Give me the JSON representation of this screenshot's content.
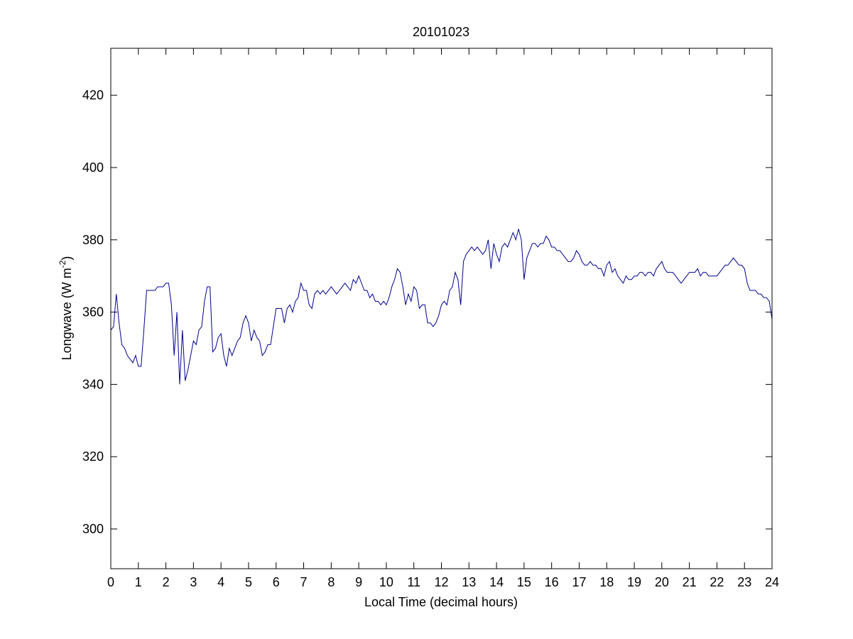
{
  "chart_data": {
    "type": "line",
    "title": "20101023",
    "xlabel": "Local Time (decimal hours)",
    "ylabel": [
      "Longwave (W m",
      "-2",
      ")"
    ],
    "xlim": [
      0,
      24
    ],
    "ylim": [
      289,
      433
    ],
    "xticks": [
      0,
      1,
      2,
      3,
      4,
      5,
      6,
      7,
      8,
      9,
      10,
      11,
      12,
      13,
      14,
      15,
      16,
      17,
      18,
      19,
      20,
      21,
      22,
      23,
      24
    ],
    "yticks": [
      300,
      320,
      340,
      360,
      380,
      400,
      420
    ],
    "grid": false,
    "x": [
      0,
      0.1,
      0.2,
      0.3,
      0.4,
      0.5,
      0.6,
      0.7,
      0.8,
      0.9,
      1,
      1.1,
      1.2,
      1.3,
      1.4,
      1.5,
      1.6,
      1.7,
      1.8,
      1.9,
      2,
      2.1,
      2.2,
      2.3,
      2.4,
      2.5,
      2.6,
      2.7,
      2.8,
      2.9,
      3,
      3.1,
      3.2,
      3.3,
      3.4,
      3.5,
      3.6,
      3.7,
      3.8,
      3.9,
      4,
      4.1,
      4.2,
      4.3,
      4.4,
      4.5,
      4.6,
      4.7,
      4.8,
      4.9,
      5,
      5.1,
      5.2,
      5.3,
      5.4,
      5.5,
      5.6,
      5.7,
      5.8,
      5.9,
      6,
      6.1,
      6.2,
      6.3,
      6.4,
      6.5,
      6.6,
      6.7,
      6.8,
      6.9,
      7,
      7.1,
      7.2,
      7.3,
      7.4,
      7.5,
      7.6,
      7.7,
      7.8,
      7.9,
      8,
      8.1,
      8.2,
      8.3,
      8.4,
      8.5,
      8.6,
      8.7,
      8.8,
      8.9,
      9,
      9.1,
      9.2,
      9.3,
      9.4,
      9.5,
      9.6,
      9.7,
      9.8,
      9.9,
      10,
      10.1,
      10.2,
      10.3,
      10.4,
      10.5,
      10.6,
      10.7,
      10.8,
      10.9,
      11,
      11.1,
      11.2,
      11.3,
      11.4,
      11.5,
      11.6,
      11.7,
      11.8,
      11.9,
      12,
      12.1,
      12.2,
      12.3,
      12.4,
      12.5,
      12.6,
      12.7,
      12.8,
      12.9,
      13,
      13.1,
      13.2,
      13.3,
      13.4,
      13.5,
      13.6,
      13.7,
      13.8,
      13.9,
      14,
      14.1,
      14.2,
      14.3,
      14.4,
      14.5,
      14.6,
      14.7,
      14.8,
      14.9,
      15,
      15.1,
      15.2,
      15.3,
      15.4,
      15.5,
      15.6,
      15.7,
      15.8,
      15.9,
      16,
      16.1,
      16.2,
      16.3,
      16.4,
      16.5,
      16.6,
      16.7,
      16.8,
      16.9,
      17,
      17.1,
      17.2,
      17.3,
      17.4,
      17.5,
      17.6,
      17.7,
      17.8,
      17.9,
      18,
      18.1,
      18.2,
      18.3,
      18.4,
      18.5,
      18.6,
      18.7,
      18.8,
      18.9,
      19,
      19.1,
      19.2,
      19.3,
      19.4,
      19.5,
      19.6,
      19.7,
      19.8,
      19.9,
      20,
      20.1,
      20.2,
      20.3,
      20.4,
      20.5,
      20.6,
      20.7,
      20.8,
      20.9,
      21,
      21.1,
      21.2,
      21.3,
      21.4,
      21.5,
      21.6,
      21.7,
      21.8,
      21.9,
      22,
      22.1,
      22.2,
      22.3,
      22.4,
      22.5,
      22.6,
      22.7,
      22.8,
      22.9,
      23,
      23.1,
      23.2,
      23.3,
      23.4,
      23.5,
      23.6,
      23.7,
      23.8,
      23.9,
      24
    ],
    "series": [
      {
        "color": "#00008f",
        "values": [
          355,
          356,
          365,
          357,
          351,
          350,
          348,
          347,
          346,
          348,
          345,
          345,
          355,
          366,
          366,
          366,
          366,
          367,
          367,
          367,
          368,
          368,
          362,
          348,
          360,
          340,
          355,
          341,
          344,
          348,
          352,
          351,
          355,
          356,
          363,
          367,
          367,
          349,
          350,
          353,
          354,
          348,
          345,
          350,
          348,
          350,
          352,
          353,
          357,
          359,
          357,
          352,
          355,
          353,
          352,
          348,
          349,
          351,
          351,
          356,
          361,
          361,
          361,
          357,
          361,
          362,
          360,
          363,
          364,
          368,
          366,
          366,
          362,
          361,
          365,
          366,
          365,
          366,
          365,
          366,
          367,
          366,
          365,
          366,
          367,
          368,
          367,
          366,
          369,
          368,
          370,
          368,
          366,
          366,
          364,
          365,
          363,
          363,
          362,
          363,
          362,
          364,
          367,
          369,
          372,
          371,
          367,
          362,
          365,
          363,
          367,
          366,
          361,
          362,
          362,
          357,
          357,
          356,
          357,
          359,
          362,
          363,
          362,
          366,
          367,
          371,
          369,
          362,
          374,
          376,
          377,
          378,
          377,
          378,
          377,
          376,
          377,
          380,
          372,
          379,
          376,
          374,
          378,
          379,
          378,
          380,
          382,
          380,
          383,
          380,
          369,
          375,
          377,
          379,
          379,
          378,
          379,
          379,
          381,
          380,
          378,
          378,
          377,
          377,
          376,
          375,
          374,
          374,
          375,
          377,
          376,
          374,
          373,
          373,
          374,
          373,
          373,
          372,
          372,
          370,
          373,
          374,
          371,
          372,
          370,
          369,
          368,
          370,
          369,
          369,
          370,
          370,
          371,
          371,
          370,
          371,
          371,
          370,
          372,
          373,
          374,
          372,
          371,
          371,
          371,
          370,
          369,
          368,
          369,
          370,
          371,
          371,
          371,
          372,
          370,
          371,
          371,
          370,
          370,
          370,
          370,
          371,
          372,
          373,
          373,
          374,
          375,
          374,
          373,
          373,
          372,
          368,
          366,
          366,
          366,
          365,
          365,
          364,
          364,
          363,
          358
        ]
      }
    ]
  }
}
